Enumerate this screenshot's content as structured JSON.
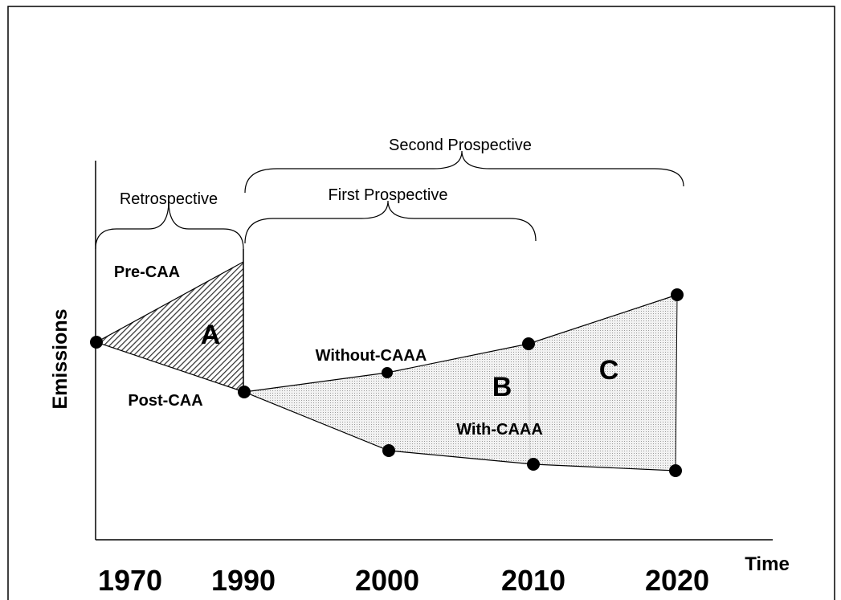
{
  "axes": {
    "y_label": "Emissions",
    "x_label": "Time",
    "years": [
      "1970",
      "1990",
      "2000",
      "2010",
      "2020"
    ]
  },
  "brackets": {
    "second_prospective": "Second Prospective",
    "first_prospective": "First Prospective",
    "retrospective": "Retrospective"
  },
  "lines": {
    "pre": "Pre-CAA",
    "post": "Post-CAA",
    "without": "Without-CAAA",
    "with": "With-CAAA"
  },
  "regions": [
    "A",
    "B",
    "C"
  ]
}
